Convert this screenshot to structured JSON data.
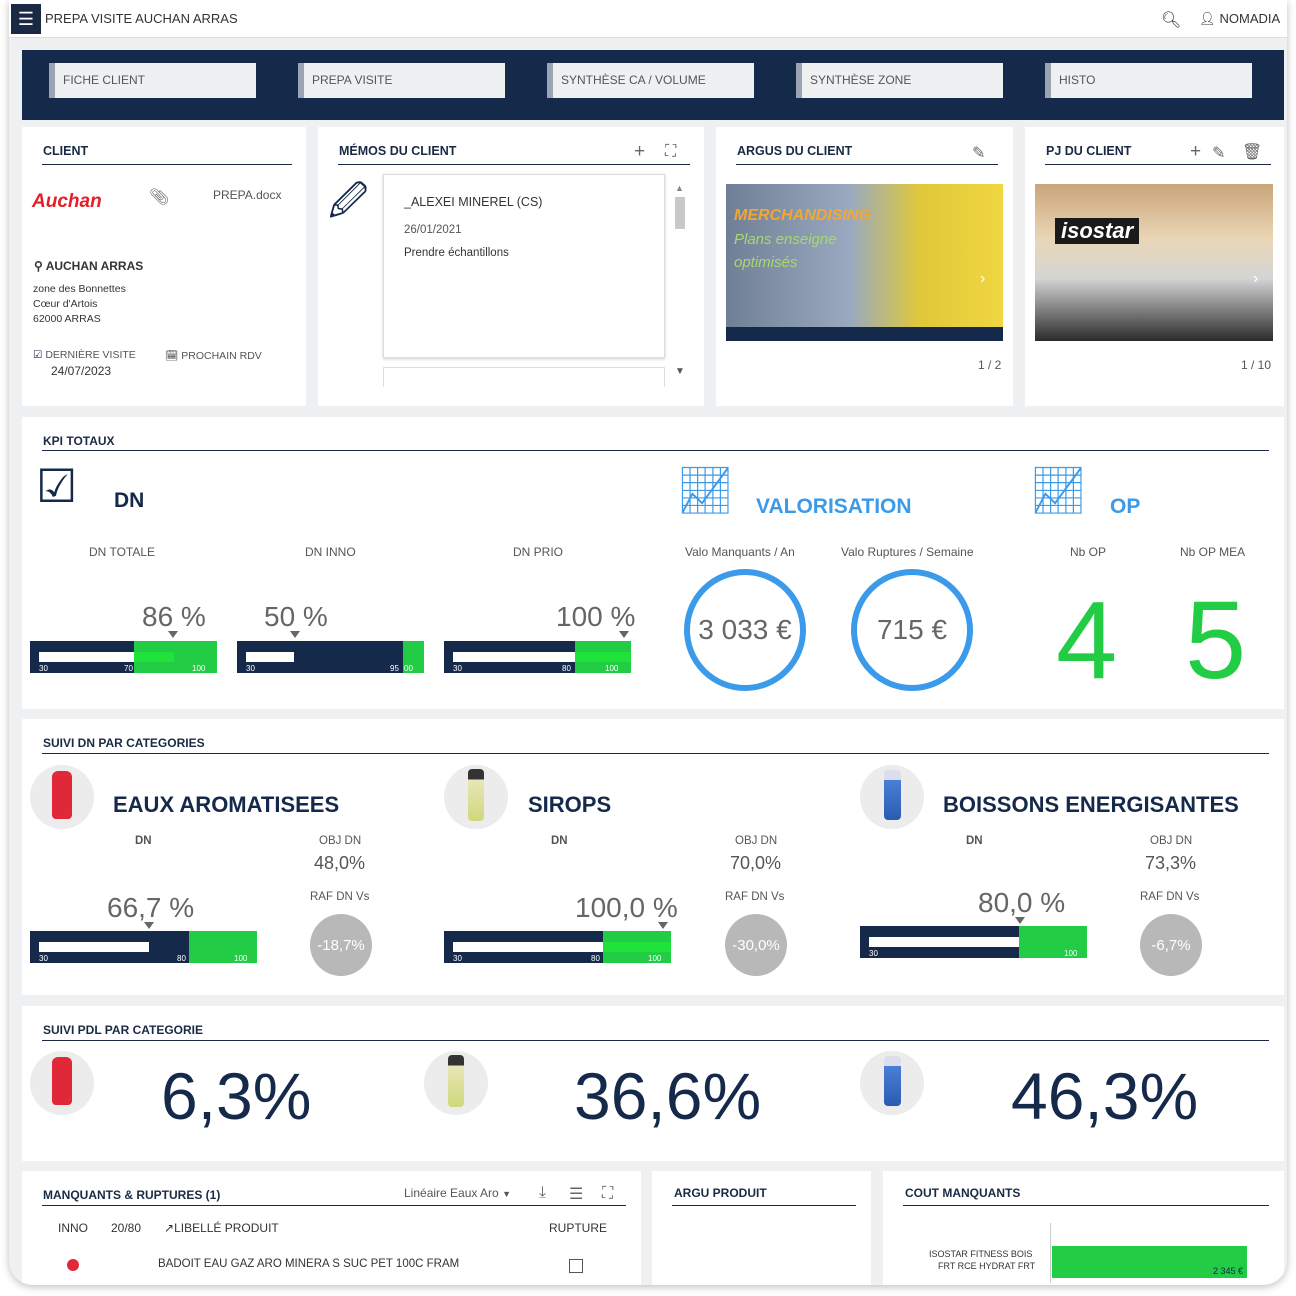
{
  "app": {
    "title": "PREPA VISITE AUCHAN ARRAS",
    "user": "NOMADIA"
  },
  "tabs": [
    "FICHE CLIENT",
    "PREPA VISITE",
    "SYNTHÈSE CA / VOLUME",
    "SYNTHÈSE ZONE",
    "HISTO"
  ],
  "client": {
    "header": "CLIENT",
    "logo": "Auchan",
    "file": "PREPA.docx",
    "name": "AUCHAN ARRAS",
    "addr1": "zone des Bonnettes",
    "addr2": "Cœur d'Artois",
    "addr3": "62000 ARRAS",
    "last_visit_label": "DERNIÈRE VISITE",
    "last_visit_date": "24/07/2023",
    "next_rdv_label": "PROCHAIN RDV"
  },
  "memos": {
    "header": "MÉMOS DU CLIENT",
    "author": "_ALEXEI MINEREL (CS)",
    "date": "26/01/2021",
    "text": "Prendre échantillons"
  },
  "argus": {
    "header": "ARGUS DU CLIENT",
    "line1": "MERCHANDISING",
    "line2": "Plans enseigne",
    "line3": "optimisés",
    "pager": "1 / 2"
  },
  "pj": {
    "header": "PJ DU CLIENT",
    "brand": "isostar",
    "pager": "1 / 10"
  },
  "kpi": {
    "header": "KPI TOTAUX",
    "dn_title": "DN",
    "valo_title": "VALORISATION",
    "op_title": "OP",
    "dn": [
      {
        "label": "DN TOTALE",
        "pct": "86 %",
        "value": 86,
        "lo": "30",
        "mid": "70",
        "hi": "100"
      },
      {
        "label": "DN INNO",
        "pct": "50 %",
        "value": 50,
        "lo": "30",
        "mid": "95",
        "hi": "00"
      },
      {
        "label": "DN PRIO",
        "pct": "100 %",
        "value": 100,
        "lo": "30",
        "mid": "80",
        "hi": "100"
      }
    ],
    "valo": [
      {
        "label": "Valo Manquants / An",
        "value": "3 033 €"
      },
      {
        "label": "Valo Ruptures / Semaine",
        "value": "715 €"
      }
    ],
    "op": [
      {
        "label": "Nb OP",
        "value": "4"
      },
      {
        "label": "Nb OP MEA",
        "value": "5"
      }
    ]
  },
  "suivi_dn": {
    "header": "SUIVI DN PAR CATEGORIES",
    "dn_label": "DN",
    "obj_label": "OBJ DN",
    "raf_label": "RAF DN Vs",
    "cats": [
      {
        "name": "EAUX AROMATISEES",
        "pct": "66,7 %",
        "value": 66.7,
        "obj": "48,0%",
        "raf": "-18,7%",
        "lo": "30",
        "mid": "80",
        "hi": "100"
      },
      {
        "name": "SIROPS",
        "pct": "100,0 %",
        "value": 100,
        "obj": "70,0%",
        "raf": "-30,0%",
        "lo": "30",
        "mid": "80",
        "hi": "100"
      },
      {
        "name": "BOISSONS ENERGISANTES",
        "pct": "80,0 %",
        "value": 80,
        "obj": "73,3%",
        "raf": "-6,7%",
        "lo": "30",
        "mid": "",
        "hi": "100"
      }
    ]
  },
  "suivi_pdl": {
    "header": "SUIVI PDL PAR CATEGORIE",
    "values": [
      "6,3%",
      "36,6%",
      "46,3%"
    ]
  },
  "manquants": {
    "header": "MANQUANTS & RUPTURES (1)",
    "filter": "Linéaire Eaux Aro",
    "cols": [
      "INNO",
      "20/80",
      "LIBELLÉ PRODUIT",
      "RUPTURE"
    ],
    "row": "BADOIT EAU GAZ ARO MINERA S SUC PET 100C FRAM"
  },
  "argu_produit": {
    "header": "ARGU PRODUIT"
  },
  "cout": {
    "header": "COUT MANQUANTS",
    "label1": "ISOSTAR FITNESS BOIS",
    "label2": "FRT RCE HYDRAT FRT",
    "value": "2 345 €"
  },
  "colors": {
    "navy": "#15294a",
    "green": "#22cc44",
    "blue": "#3b9bea"
  }
}
